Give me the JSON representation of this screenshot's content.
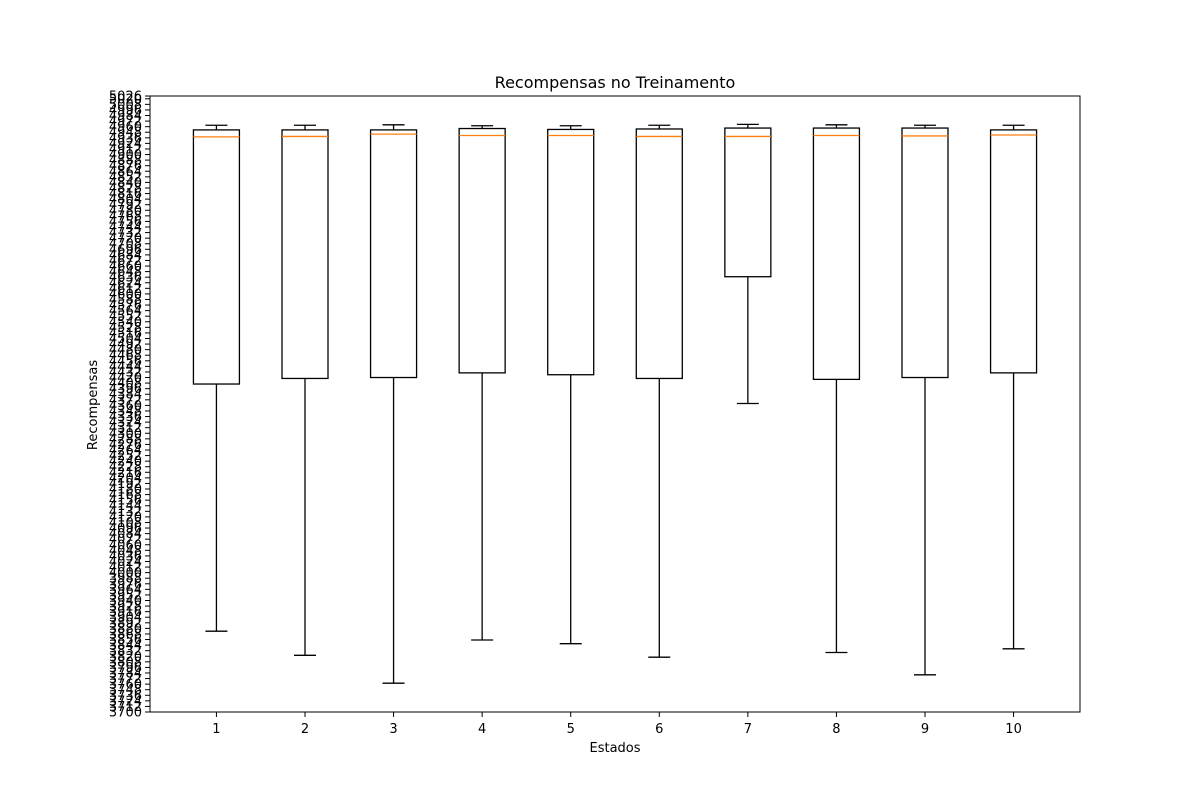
{
  "chart_data": {
    "type": "box",
    "title": "Recompensas no Treinamento",
    "xlabel": "Estados",
    "ylabel": "Recompensas",
    "categories": [
      "1",
      "2",
      "3",
      "4",
      "5",
      "6",
      "7",
      "8",
      "9",
      "10"
    ],
    "ylim": [
      3700,
      5026
    ],
    "yticks": [
      3700,
      3712,
      3724,
      3736,
      3748,
      3760,
      3772,
      3784,
      3796,
      3808,
      3820,
      3832,
      3844,
      3856,
      3868,
      3880,
      3892,
      3904,
      3916,
      3928,
      3940,
      3952,
      3964,
      3976,
      3988,
      4000,
      4012,
      4024,
      4036,
      4048,
      4060,
      4072,
      4084,
      4096,
      4108,
      4120,
      4132,
      4144,
      4156,
      4168,
      4180,
      4192,
      4204,
      4216,
      4228,
      4240,
      4252,
      4264,
      4276,
      4288,
      4300,
      4312,
      4324,
      4336,
      4348,
      4360,
      4372,
      4384,
      4396,
      4408,
      4420,
      4432,
      4444,
      4456,
      4468,
      4480,
      4492,
      4504,
      4516,
      4528,
      4540,
      4552,
      4564,
      4576,
      4588,
      4600,
      4612,
      4624,
      4636,
      4648,
      4660,
      4672,
      4684,
      4696,
      4708,
      4720,
      4732,
      4744,
      4756,
      4768,
      4780,
      4792,
      4804,
      4816,
      4828,
      4840,
      4852,
      4864,
      4876,
      4888,
      4900,
      4912,
      4924,
      4936,
      4948,
      4960,
      4972,
      4984,
      4996,
      5008,
      5020,
      5026
    ],
    "boxes": [
      {
        "whisker_low": 3874,
        "q1": 4406,
        "median": 4938,
        "q3": 4953,
        "whisker_high": 4963
      },
      {
        "whisker_low": 3822,
        "q1": 4418,
        "median": 4939,
        "q3": 4953,
        "whisker_high": 4963
      },
      {
        "whisker_low": 3762,
        "q1": 4420,
        "median": 4944,
        "q3": 4953,
        "whisker_high": 4964
      },
      {
        "whisker_low": 3855,
        "q1": 4430,
        "median": 4941,
        "q3": 4956,
        "whisker_high": 4962
      },
      {
        "whisker_low": 3847,
        "q1": 4426,
        "median": 4941,
        "q3": 4954,
        "whisker_high": 4962
      },
      {
        "whisker_low": 3818,
        "q1": 4418,
        "median": 4939,
        "q3": 4955,
        "whisker_high": 4963
      },
      {
        "whisker_low": 4364,
        "q1": 4637,
        "median": 4939,
        "q3": 4957,
        "whisker_high": 4965
      },
      {
        "whisker_low": 3828,
        "q1": 4416,
        "median": 4941,
        "q3": 4957,
        "whisker_high": 4964
      },
      {
        "whisker_low": 3780,
        "q1": 4420,
        "median": 4940,
        "q3": 4957,
        "whisker_high": 4963
      },
      {
        "whisker_low": 3836,
        "q1": 4430,
        "median": 4942,
        "q3": 4953,
        "whisker_high": 4963
      }
    ],
    "colors": {
      "box": "#000000",
      "median": "#ff7f0e"
    },
    "grid": false,
    "legend": "none"
  }
}
